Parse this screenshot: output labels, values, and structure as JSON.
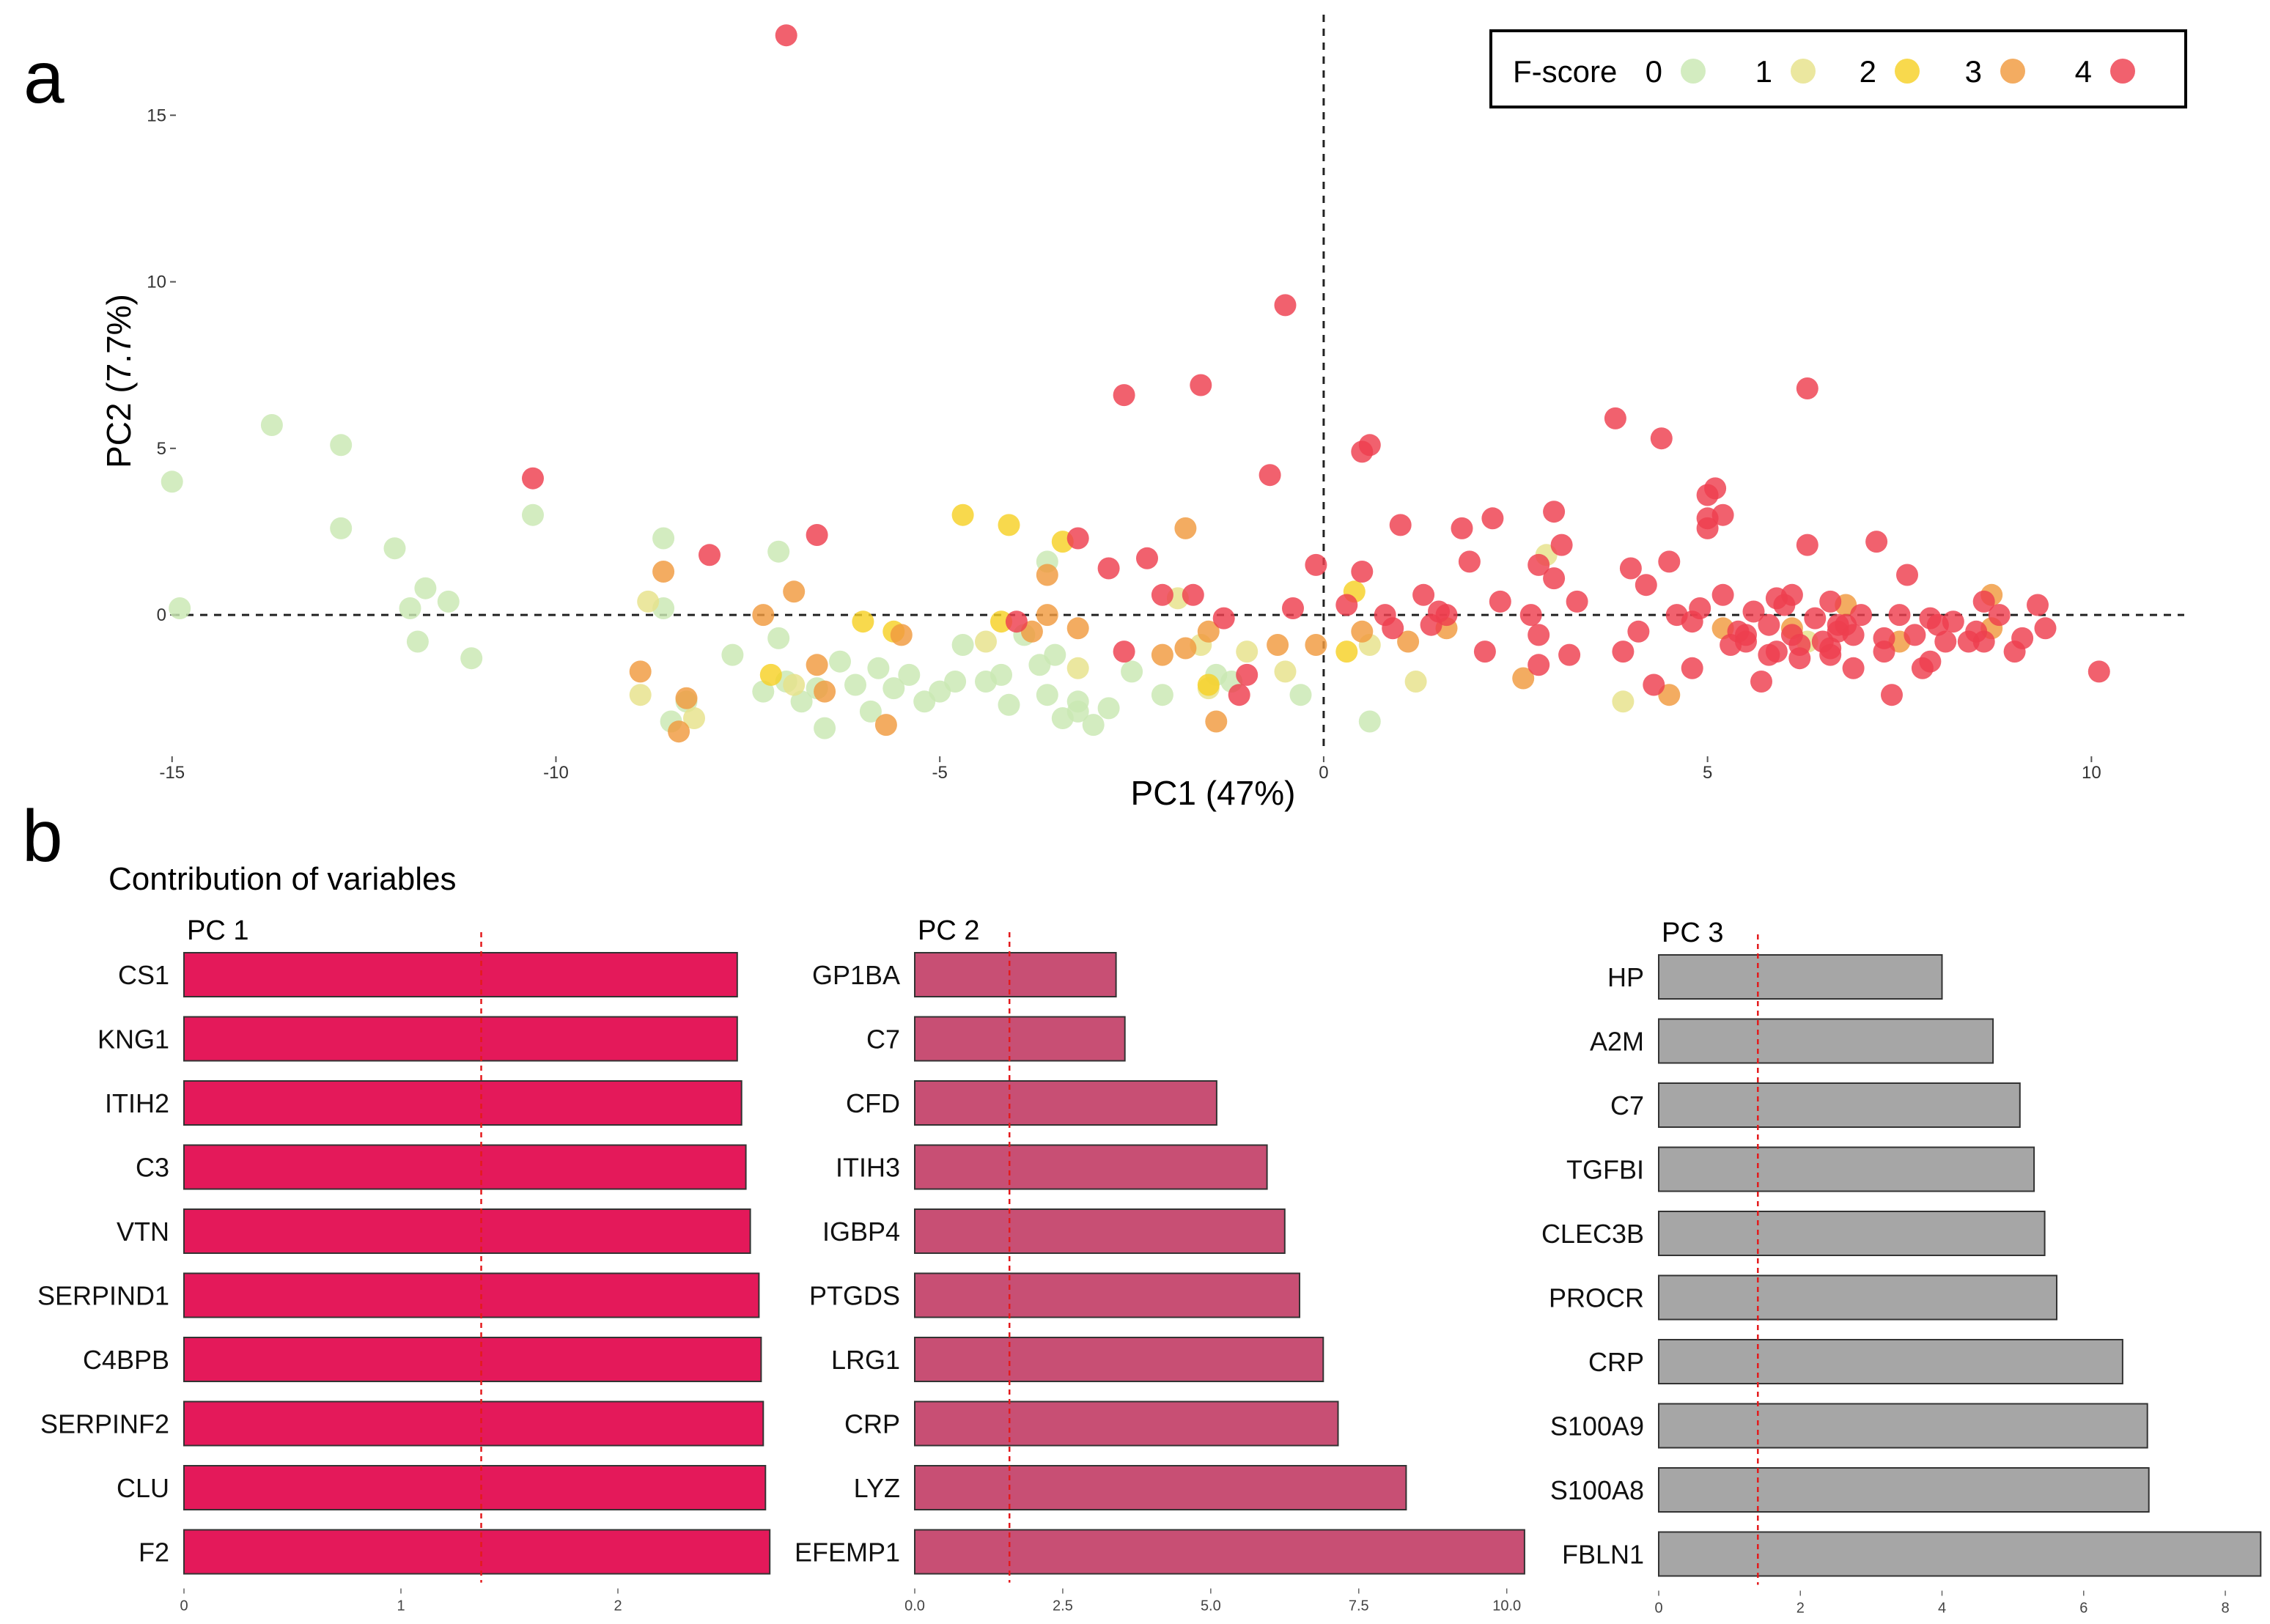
{
  "colors": {
    "fscore": [
      "#c9e8b2",
      "#e6e28a",
      "#f7d126",
      "#f09a3e",
      "#ee3e4e"
    ],
    "pc1_bar": "#e4195a",
    "pc2_bar": "#c84f74",
    "pc3_bar": "#a6a6a6",
    "ref_line": "#e31a1c"
  },
  "panel_a": {
    "letter": "a",
    "legend": {
      "title": "F-score",
      "levels": [
        "0",
        "1",
        "2",
        "3",
        "4"
      ]
    },
    "chart_data": {
      "type": "scatter",
      "xlabel": "PC1 (47%)",
      "ylabel": "PC2 (7.7%)",
      "xlim": [
        -16.0,
        11.4
      ],
      "ylim": [
        -4.2,
        17.8
      ],
      "xticks": [
        -15,
        -10,
        -5,
        0,
        5,
        10
      ],
      "yticks": [
        0,
        5,
        10,
        15
      ],
      "reference_lines": {
        "x": 0,
        "y": 0
      },
      "points": [
        [
          -15,
          4,
          0
        ],
        [
          -14.9,
          0.2,
          0
        ],
        [
          -13.7,
          5.7,
          0
        ],
        [
          -12.8,
          5.1,
          0
        ],
        [
          -12.8,
          2.6,
          0
        ],
        [
          -12.1,
          2,
          0
        ],
        [
          -11.9,
          0.2,
          0
        ],
        [
          -11.7,
          0.8,
          0
        ],
        [
          -11.4,
          0.4,
          0
        ],
        [
          -11.8,
          -0.8,
          0
        ],
        [
          -11.1,
          -1.3,
          0
        ],
        [
          -10.3,
          3,
          0
        ],
        [
          -8.6,
          2.3,
          0
        ],
        [
          -8.5,
          -3.2,
          0
        ],
        [
          -8.3,
          -2.6,
          0
        ],
        [
          -8.6,
          0.2,
          0
        ],
        [
          -7.7,
          -1.2,
          0
        ],
        [
          -7.1,
          1.9,
          0
        ],
        [
          -7.3,
          -2.3,
          0
        ],
        [
          -7,
          -2,
          0
        ],
        [
          -6.8,
          -2.6,
          0
        ],
        [
          -6.5,
          -3.4,
          0
        ],
        [
          -6.3,
          -1.4,
          0
        ],
        [
          -6.1,
          -2.1,
          0
        ],
        [
          -5.9,
          -2.9,
          0
        ],
        [
          -5.6,
          -2.2,
          0
        ],
        [
          -5.4,
          -1.8,
          0
        ],
        [
          -5.2,
          -2.6,
          0
        ],
        [
          -5,
          -2.3,
          0
        ],
        [
          -4.8,
          -2,
          0
        ],
        [
          -4.7,
          -0.9,
          0
        ],
        [
          -4.4,
          -2,
          0
        ],
        [
          -4.2,
          -1.8,
          0
        ],
        [
          -4.1,
          -2.7,
          0
        ],
        [
          -3.9,
          -0.6,
          0
        ],
        [
          -3.7,
          -1.5,
          0
        ],
        [
          -3.6,
          -2.4,
          0
        ],
        [
          -3.5,
          -1.2,
          0
        ],
        [
          -3.4,
          -3.1,
          0
        ],
        [
          -3.2,
          -2.9,
          0
        ],
        [
          -3.6,
          1.6,
          0
        ],
        [
          -3,
          -3.3,
          0
        ],
        [
          -2.8,
          -2.8,
          0
        ],
        [
          -2.5,
          -1.7,
          0
        ],
        [
          -2.1,
          -2.4,
          0
        ],
        [
          -1.4,
          -1.8,
          0
        ],
        [
          -1.2,
          -2,
          0
        ],
        [
          -0.3,
          -2.4,
          0
        ],
        [
          0.6,
          -3.2,
          0
        ],
        [
          -7.1,
          -0.7,
          0
        ],
        [
          -6.6,
          -2.2,
          0
        ],
        [
          -3.2,
          -2.6,
          0
        ],
        [
          -5.8,
          -1.6,
          0
        ],
        [
          -8.9,
          -2.4,
          1
        ],
        [
          -8.8,
          0.4,
          1
        ],
        [
          -8.2,
          -3.1,
          1
        ],
        [
          -6.9,
          -2.1,
          1
        ],
        [
          -4.4,
          -0.8,
          1
        ],
        [
          -3.2,
          -1.6,
          1
        ],
        [
          -1.6,
          -0.9,
          1
        ],
        [
          -1.5,
          -2.2,
          1
        ],
        [
          -1,
          -1.1,
          1
        ],
        [
          -0.5,
          -1.7,
          1
        ],
        [
          0.6,
          -0.9,
          1
        ],
        [
          1.2,
          -2,
          1
        ],
        [
          2.9,
          1.8,
          1
        ],
        [
          3.9,
          -2.6,
          1
        ],
        [
          6.3,
          -0.8,
          1
        ],
        [
          -1.9,
          0.5,
          1
        ],
        [
          -4.7,
          3,
          2
        ],
        [
          -4.1,
          2.7,
          2
        ],
        [
          -3.4,
          2.2,
          2
        ],
        [
          -6,
          -0.2,
          2
        ],
        [
          -5.6,
          -0.5,
          2
        ],
        [
          -4.2,
          -0.2,
          2
        ],
        [
          -1.5,
          -2.1,
          2
        ],
        [
          0.4,
          0.7,
          2
        ],
        [
          0.3,
          -1.1,
          2
        ],
        [
          -7.2,
          -1.8,
          2
        ],
        [
          -8.9,
          -1.7,
          3
        ],
        [
          -8.6,
          1.3,
          3
        ],
        [
          -8.4,
          -3.5,
          3
        ],
        [
          -8.3,
          -2.5,
          3
        ],
        [
          -7.3,
          0,
          3
        ],
        [
          -6.9,
          0.7,
          3
        ],
        [
          -6.6,
          -1.5,
          3
        ],
        [
          -6.5,
          -2.3,
          3
        ],
        [
          -5.7,
          -3.3,
          3
        ],
        [
          -5.5,
          -0.6,
          3
        ],
        [
          -3.8,
          -0.5,
          3
        ],
        [
          -3.6,
          0,
          3
        ],
        [
          -3.2,
          -0.4,
          3
        ],
        [
          -2.1,
          -1.2,
          3
        ],
        [
          -1.8,
          -1,
          3
        ],
        [
          -1.5,
          -0.5,
          3
        ],
        [
          -0.6,
          -0.9,
          3
        ],
        [
          -0.1,
          -0.9,
          3
        ],
        [
          0.5,
          -0.5,
          3
        ],
        [
          1.1,
          -0.8,
          3
        ],
        [
          1.6,
          -0.4,
          3
        ],
        [
          2.6,
          -1.9,
          3
        ],
        [
          4.5,
          -2.4,
          3
        ],
        [
          5.2,
          -0.4,
          3
        ],
        [
          6.8,
          0.3,
          3
        ],
        [
          7.5,
          -0.8,
          3
        ],
        [
          8.7,
          -0.4,
          3
        ],
        [
          8.7,
          0.6,
          3
        ],
        [
          -1.8,
          2.6,
          3
        ],
        [
          -1.4,
          -3.2,
          3
        ],
        [
          -3.6,
          1.2,
          3
        ],
        [
          6.1,
          -0.4,
          3
        ],
        [
          -7,
          17.4,
          4
        ],
        [
          -0.5,
          9.3,
          4
        ],
        [
          -2.6,
          6.6,
          4
        ],
        [
          -1.6,
          6.9,
          4
        ],
        [
          -0.7,
          4.2,
          4
        ],
        [
          0.5,
          4.9,
          4
        ],
        [
          0.6,
          5.1,
          4
        ],
        [
          -10.3,
          4.1,
          4
        ],
        [
          -8,
          1.8,
          4
        ],
        [
          -6.6,
          2.4,
          4
        ],
        [
          -3.2,
          2.3,
          4
        ],
        [
          -2.8,
          1.4,
          4
        ],
        [
          -2.3,
          1.7,
          4
        ],
        [
          -2.1,
          0.6,
          4
        ],
        [
          -1.7,
          0.6,
          4
        ],
        [
          -1.3,
          -0.1,
          4
        ],
        [
          -1,
          -1.8,
          4
        ],
        [
          -1.1,
          -2.4,
          4
        ],
        [
          -0.4,
          0.2,
          4
        ],
        [
          -0.1,
          1.5,
          4
        ],
        [
          0.3,
          0.3,
          4
        ],
        [
          0.5,
          1.3,
          4
        ],
        [
          0.8,
          0,
          4
        ],
        [
          0.9,
          -0.4,
          4
        ],
        [
          1,
          2.7,
          4
        ],
        [
          1.3,
          0.6,
          4
        ],
        [
          1.4,
          -0.3,
          4
        ],
        [
          1.5,
          0.1,
          4
        ],
        [
          1.6,
          0,
          4
        ],
        [
          1.8,
          2.6,
          4
        ],
        [
          2.1,
          -1.1,
          4
        ],
        [
          2.2,
          2.9,
          4
        ],
        [
          2.3,
          0.4,
          4
        ],
        [
          2.7,
          0,
          4
        ],
        [
          2.8,
          -1.5,
          4
        ],
        [
          2.8,
          1.5,
          4
        ],
        [
          3,
          3.1,
          4
        ],
        [
          3.1,
          2.1,
          4
        ],
        [
          3.2,
          -1.2,
          4
        ],
        [
          3.3,
          0.4,
          4
        ],
        [
          3.8,
          5.9,
          4
        ],
        [
          3.9,
          -1.1,
          4
        ],
        [
          4,
          1.4,
          4
        ],
        [
          4.1,
          -0.5,
          4
        ],
        [
          4.2,
          0.9,
          4
        ],
        [
          4.3,
          -2.1,
          4
        ],
        [
          4.4,
          5.3,
          4
        ],
        [
          4.5,
          1.6,
          4
        ],
        [
          4.6,
          0,
          4
        ],
        [
          4.8,
          -0.2,
          4
        ],
        [
          4.8,
          -1.6,
          4
        ],
        [
          4.9,
          0.2,
          4
        ],
        [
          5,
          3.6,
          4
        ],
        [
          5,
          2.9,
          4
        ],
        [
          5,
          2.6,
          4
        ],
        [
          5.1,
          3.8,
          4
        ],
        [
          5.2,
          0.6,
          4
        ],
        [
          5.2,
          3,
          4
        ],
        [
          5.4,
          -0.5,
          4
        ],
        [
          5.5,
          -0.8,
          4
        ],
        [
          5.6,
          0.1,
          4
        ],
        [
          5.7,
          -2,
          4
        ],
        [
          5.8,
          -0.3,
          4
        ],
        [
          5.9,
          -1.1,
          4
        ],
        [
          6,
          0.3,
          4
        ],
        [
          6.1,
          -0.6,
          4
        ],
        [
          6.1,
          0.6,
          4
        ],
        [
          6.2,
          -1.3,
          4
        ],
        [
          6.3,
          2.1,
          4
        ],
        [
          6.3,
          6.8,
          4
        ],
        [
          6.4,
          -0.1,
          4
        ],
        [
          6.5,
          -0.8,
          4
        ],
        [
          6.6,
          -1.2,
          4
        ],
        [
          6.7,
          -0.5,
          4
        ],
        [
          6.8,
          -0.3,
          4
        ],
        [
          6.9,
          -1.6,
          4
        ],
        [
          7,
          0,
          4
        ],
        [
          7.2,
          2.2,
          4
        ],
        [
          7.3,
          -0.7,
          4
        ],
        [
          7.4,
          -2.4,
          4
        ],
        [
          7.5,
          0,
          4
        ],
        [
          7.6,
          1.2,
          4
        ],
        [
          7.7,
          -0.6,
          4
        ],
        [
          7.8,
          -1.6,
          4
        ],
        [
          7.9,
          -1.4,
          4
        ],
        [
          8,
          -0.3,
          4
        ],
        [
          8.2,
          -0.2,
          4
        ],
        [
          8.4,
          -0.8,
          4
        ],
        [
          8.5,
          -0.5,
          4
        ],
        [
          8.6,
          -0.8,
          4
        ],
        [
          8.8,
          0,
          4
        ],
        [
          9,
          -1.1,
          4
        ],
        [
          9.3,
          0.3,
          4
        ],
        [
          9.4,
          -0.4,
          4
        ],
        [
          10.1,
          -1.7,
          4
        ],
        [
          6.2,
          -0.9,
          4
        ],
        [
          5.9,
          0.5,
          4
        ],
        [
          6.6,
          0.4,
          4
        ],
        [
          7.9,
          -0.1,
          4
        ],
        [
          8.6,
          0.4,
          4
        ],
        [
          5.5,
          -0.6,
          4
        ],
        [
          6.7,
          -0.3,
          4
        ],
        [
          6.9,
          -0.6,
          4
        ],
        [
          5.3,
          -0.9,
          4
        ],
        [
          5.8,
          -1.2,
          4
        ],
        [
          6.6,
          -1,
          4
        ],
        [
          -4,
          -0.2,
          4
        ],
        [
          -2.6,
          -1.1,
          4
        ],
        [
          1.9,
          1.6,
          4
        ],
        [
          3,
          1.1,
          4
        ],
        [
          2.8,
          -0.6,
          4
        ],
        [
          7.3,
          -1.1,
          4
        ],
        [
          8.1,
          -0.8,
          4
        ],
        [
          9.1,
          -0.7,
          4
        ]
      ]
    }
  },
  "panel_b": {
    "letter": "b",
    "title": "Contribution of variables",
    "chart_data": [
      {
        "type": "bar",
        "orientation": "horizontal",
        "title": "PC 1",
        "categories": [
          "CS1",
          "KNG1",
          "ITIH2",
          "C3",
          "VTN",
          "SERPIND1",
          "C4BPB",
          "SERPINF2",
          "CLU",
          "F2"
        ],
        "values": [
          2.55,
          2.55,
          2.57,
          2.59,
          2.61,
          2.65,
          2.66,
          2.67,
          2.68,
          2.7
        ],
        "xlim": [
          0,
          2.75
        ],
        "xticks": [
          "0",
          "1",
          "2"
        ],
        "xtick_values": [
          0,
          1,
          2
        ],
        "reference_value": 1.37
      },
      {
        "type": "bar",
        "orientation": "horizontal",
        "title": "PC 2",
        "categories": [
          "GP1BA",
          "C7",
          "CFD",
          "ITIH3",
          "IGBP4",
          "PTGDS",
          "LRG1",
          "CRP",
          "LYZ",
          "EFEMP1"
        ],
        "values": [
          3.4,
          3.55,
          5.1,
          5.95,
          6.25,
          6.5,
          6.9,
          7.15,
          8.3,
          10.3
        ],
        "xlim": [
          0,
          10.4
        ],
        "xticks": [
          "0.0",
          "2.5",
          "5.0",
          "7.5",
          "10.0"
        ],
        "xtick_values": [
          0,
          2.5,
          5,
          7.5,
          10
        ],
        "reference_value": 1.6
      },
      {
        "type": "bar",
        "orientation": "horizontal",
        "title": "PC 3",
        "categories": [
          "HP",
          "A2M",
          "C7",
          "TGFBI",
          "CLEC3B",
          "PROCR",
          "CRP",
          "S100A9",
          "S100A8",
          "FBLN1"
        ],
        "values": [
          4.0,
          4.72,
          5.1,
          5.3,
          5.45,
          5.62,
          6.55,
          6.9,
          6.92,
          8.5
        ],
        "xlim": [
          0,
          8.6
        ],
        "xticks": [
          "0",
          "2",
          "4",
          "6",
          "8"
        ],
        "xtick_values": [
          0,
          2,
          4,
          6,
          8
        ],
        "reference_value": 1.4
      }
    ]
  }
}
